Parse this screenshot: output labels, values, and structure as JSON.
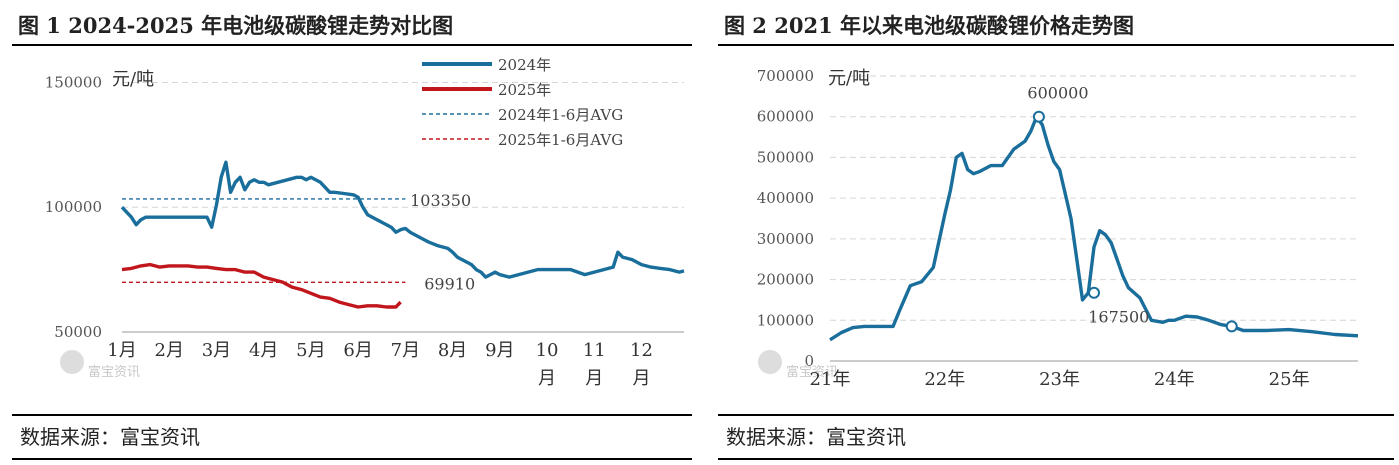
{
  "charts": [
    {
      "title": "图 1 2024-2025 年电池级碳酸锂走势对比图",
      "source": "数据来源：富宝资讯",
      "watermark": "富宝资讯",
      "chart_data": {
        "type": "line",
        "unit": "元/吨",
        "title": "图 1 2024-2025 年电池级碳酸锂走势对比图",
        "ylim": [
          50000,
          155000
        ],
        "yticks": [
          50000,
          100000,
          150000
        ],
        "ytick_labels": [
          "50000",
          "100000",
          "150000"
        ],
        "grid": true,
        "legend_position": "top-right",
        "xlim": [
          1,
          12.9
        ],
        "x_unit": "month",
        "xtick_labels": [
          {
            "m": 1,
            "lines": [
              "1月"
            ]
          },
          {
            "m": 2,
            "lines": [
              "2月"
            ]
          },
          {
            "m": 3,
            "lines": [
              "3月"
            ]
          },
          {
            "m": 4,
            "lines": [
              "4月"
            ]
          },
          {
            "m": 5,
            "lines": [
              "5月"
            ]
          },
          {
            "m": 6,
            "lines": [
              "6月"
            ]
          },
          {
            "m": 7,
            "lines": [
              "7月"
            ]
          },
          {
            "m": 8,
            "lines": [
              "8月"
            ]
          },
          {
            "m": 9,
            "lines": [
              "9月"
            ]
          },
          {
            "m": 10,
            "lines": [
              "10",
              "月"
            ]
          },
          {
            "m": 11,
            "lines": [
              "11",
              "月"
            ]
          },
          {
            "m": 12,
            "lines": [
              "12",
              "月"
            ]
          }
        ],
        "series": [
          {
            "name": "2024年",
            "color": "#1a6e9c",
            "style": "solid",
            "x": [
              1.0,
              1.1,
              1.2,
              1.3,
              1.4,
              1.5,
              1.6,
              1.7,
              2.0,
              2.5,
              2.8,
              2.9,
              3.0,
              3.1,
              3.2,
              3.3,
              3.4,
              3.5,
              3.6,
              3.7,
              3.8,
              3.9,
              4.0,
              4.1,
              4.3,
              4.5,
              4.7,
              4.8,
              4.9,
              5.0,
              5.1,
              5.2,
              5.3,
              5.4,
              5.5,
              5.7,
              5.9,
              6.0,
              6.1,
              6.2,
              6.3,
              6.4,
              6.5,
              6.6,
              6.7,
              6.8,
              6.9,
              7.0,
              7.1,
              7.3,
              7.5,
              7.7,
              7.9,
              8.0,
              8.1,
              8.2,
              8.3,
              8.4,
              8.5,
              8.6,
              8.7,
              8.8,
              8.9,
              9.0,
              9.2,
              9.4,
              9.6,
              9.8,
              10.0,
              10.2,
              10.5,
              10.8,
              11.0,
              11.2,
              11.3,
              11.4,
              11.45,
              11.5,
              11.6,
              11.8,
              12.0,
              12.2,
              12.4,
              12.6,
              12.8,
              12.9
            ],
            "y": [
              100000,
              98000,
              96000,
              93000,
              95000,
              96000,
              96000,
              96000,
              96000,
              96000,
              96000,
              92000,
              101000,
              112000,
              118000,
              106000,
              110000,
              112000,
              107000,
              110000,
              111000,
              110000,
              110000,
              109000,
              110000,
              111000,
              112000,
              112000,
              111000,
              112000,
              111000,
              110000,
              108000,
              106000,
              106000,
              105500,
              105000,
              104000,
              100000,
              97000,
              96000,
              95000,
              94000,
              93000,
              92000,
              90000,
              91000,
              91500,
              90000,
              88000,
              86000,
              84500,
              83500,
              82000,
              80000,
              79000,
              78000,
              77000,
              75000,
              74000,
              72000,
              73000,
              74000,
              73000,
              72000,
              73000,
              74000,
              75000,
              75000,
              75000,
              75000,
              73000,
              74000,
              75000,
              75500,
              76000,
              79000,
              82000,
              80000,
              79000,
              77000,
              76000,
              75500,
              75000,
              74000,
              74500
            ]
          },
          {
            "name": "2025年",
            "color": "#c0161c",
            "style": "solid",
            "x": [
              1.0,
              1.2,
              1.4,
              1.6,
              1.8,
              2.0,
              2.2,
              2.4,
              2.6,
              2.8,
              3.0,
              3.2,
              3.4,
              3.6,
              3.8,
              4.0,
              4.2,
              4.4,
              4.6,
              4.8,
              5.0,
              5.2,
              5.4,
              5.6,
              5.8,
              6.0,
              6.2,
              6.4,
              6.6,
              6.8,
              6.9
            ],
            "y": [
              75000,
              75500,
              76500,
              77000,
              76000,
              76500,
              76500,
              76500,
              76000,
              76000,
              75500,
              75000,
              75000,
              74000,
              74000,
              72000,
              71000,
              70000,
              68000,
              67000,
              65500,
              64000,
              63500,
              62000,
              61000,
              60000,
              60500,
              60500,
              60000,
              60000,
              62000
            ]
          },
          {
            "name": "2024年1-6月AVG",
            "color": "#1a6e9c",
            "style": "dashed",
            "x": [
              1.0,
              7.0
            ],
            "y": [
              103350,
              103350
            ]
          },
          {
            "name": "2025年1-6月AVG",
            "color": "#c0161c",
            "style": "dashed",
            "x": [
              1.0,
              7.0
            ],
            "y": [
              69910,
              69910
            ]
          }
        ],
        "annotations": [
          {
            "text": "103350",
            "x": 7.1,
            "y": 100500
          },
          {
            "text": "69910",
            "x": 7.4,
            "y": 67000
          }
        ]
      }
    },
    {
      "title": "图 2 2021 年以来电池级碳酸锂价格走势图",
      "source": "数据来源：富宝资讯",
      "watermark": "富宝资讯",
      "chart_data": {
        "type": "line",
        "unit": "元/吨",
        "title": "图 2 2021 年以来电池级碳酸锂价格走势图",
        "ylim": [
          0,
          700000
        ],
        "yticks": [
          0,
          100000,
          200000,
          300000,
          400000,
          500000,
          600000,
          700000
        ],
        "ytick_labels": [
          "0",
          "100000",
          "200000",
          "300000",
          "400000",
          "500000",
          "600000",
          "700000"
        ],
        "grid": true,
        "xlim": [
          2021.0,
          2025.6
        ],
        "x_unit": "year",
        "xtick_labels": [
          {
            "m": 2021,
            "lines": [
              "21年"
            ]
          },
          {
            "m": 2022,
            "lines": [
              "22年"
            ]
          },
          {
            "m": 2023,
            "lines": [
              "23年"
            ]
          },
          {
            "m": 2024,
            "lines": [
              "24年"
            ]
          },
          {
            "m": 2025,
            "lines": [
              "25年"
            ]
          }
        ],
        "series": [
          {
            "name": "",
            "color": "#1a6e9c",
            "style": "solid",
            "x": [
              2021.0,
              2021.1,
              2021.2,
              2021.3,
              2021.4,
              2021.55,
              2021.6,
              2021.7,
              2021.8,
              2021.9,
              2022.0,
              2022.05,
              2022.1,
              2022.15,
              2022.2,
              2022.25,
              2022.3,
              2022.4,
              2022.5,
              2022.6,
              2022.7,
              2022.75,
              2022.8,
              2022.85,
              2022.9,
              2022.95,
              2023.0,
              2023.1,
              2023.15,
              2023.2,
              2023.25,
              2023.3,
              2023.35,
              2023.4,
              2023.45,
              2023.5,
              2023.55,
              2023.6,
              2023.7,
              2023.8,
              2023.9,
              2023.95,
              2024.0,
              2024.1,
              2024.2,
              2024.3,
              2024.4,
              2024.5,
              2024.6,
              2024.8,
              2025.0,
              2025.2,
              2025.4,
              2025.6
            ],
            "y": [
              52000,
              70000,
              82000,
              85000,
              85000,
              85000,
              120000,
              185000,
              195000,
              230000,
              360000,
              420000,
              500000,
              510000,
              470000,
              460000,
              465000,
              480000,
              480000,
              520000,
              540000,
              565000,
              600000,
              580000,
              530000,
              490000,
              470000,
              350000,
              250000,
              150000,
              167500,
              280000,
              320000,
              310000,
              290000,
              250000,
              210000,
              180000,
              155000,
              100000,
              95000,
              100000,
              100000,
              110000,
              108000,
              100000,
              90000,
              85000,
              75000,
              75000,
              77000,
              72000,
              65000,
              62000
            ]
          }
        ],
        "annotations": [
          {
            "text": "600000",
            "x": 2022.72,
            "y": 645000
          },
          {
            "text": "167500",
            "x": 2023.25,
            "y": 95000
          }
        ],
        "markers": [
          {
            "x": 2022.82,
            "y": 600000
          },
          {
            "x": 2023.3,
            "y": 167500
          },
          {
            "x": 2024.5,
            "y": 85000
          }
        ]
      }
    }
  ]
}
